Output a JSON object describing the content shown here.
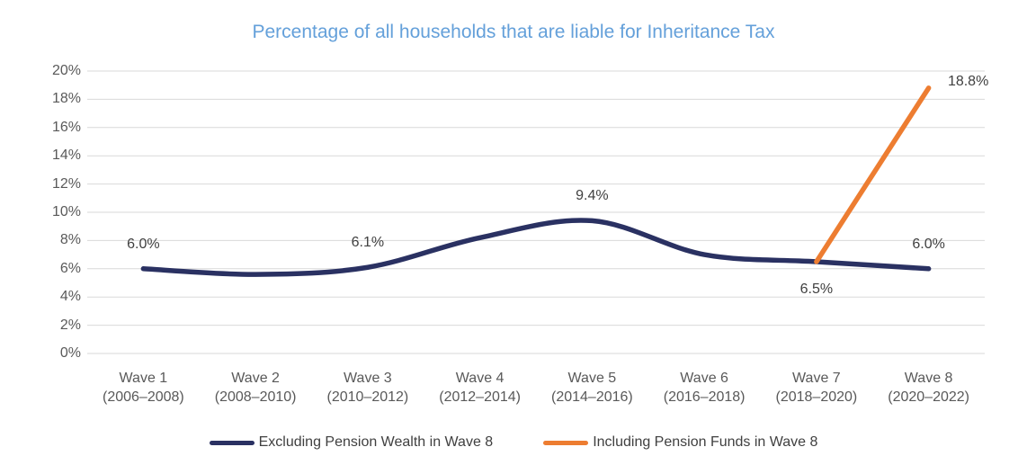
{
  "chart_data": {
    "type": "line",
    "title": "Percentage of all households that are liable for Inheritance Tax",
    "categories": [
      [
        "Wave 1",
        "(2006–2008)"
      ],
      [
        "Wave 2",
        "(2008–2010)"
      ],
      [
        "Wave 3",
        "(2010–2012)"
      ],
      [
        "Wave 4",
        "(2012–2014)"
      ],
      [
        "Wave 5",
        "(2014–2016)"
      ],
      [
        "Wave 6",
        "(2016–2018)"
      ],
      [
        "Wave 7",
        "(2018–2020)"
      ],
      [
        "Wave 8",
        "(2020–2022)"
      ]
    ],
    "ylim": [
      0,
      20
    ],
    "y_step": 2,
    "y_suffix": "%",
    "grid": true,
    "legend_position": "bottom",
    "series": [
      {
        "name": "Excluding Pension Wealth in Wave 8",
        "color": "#2A3162",
        "smooth": true,
        "values": [
          6.0,
          5.6,
          6.1,
          8.2,
          9.4,
          7.0,
          6.5,
          6.0
        ]
      },
      {
        "name": "Including Pension Funds in Wave 8",
        "color": "#ED7D31",
        "smooth": false,
        "values": [
          null,
          null,
          null,
          null,
          null,
          null,
          6.5,
          18.8
        ]
      }
    ],
    "point_labels": [
      {
        "series": 0,
        "index": 0,
        "text": "6.0%",
        "placement": "above"
      },
      {
        "series": 0,
        "index": 2,
        "text": "6.1%",
        "placement": "above"
      },
      {
        "series": 0,
        "index": 4,
        "text": "9.4%",
        "placement": "above"
      },
      {
        "series": 0,
        "index": 6,
        "text": "6.5%",
        "placement": "below"
      },
      {
        "series": 0,
        "index": 7,
        "text": "6.0%",
        "placement": "above"
      },
      {
        "series": 1,
        "index": 7,
        "text": "18.8%",
        "placement": "right"
      }
    ]
  },
  "colors": {
    "title_text": "#64A0DA",
    "axis_text": "#595959",
    "data_label_text": "#404040",
    "legend_text": "#404040",
    "gridline": "#D9D9D9",
    "background": "#FFFFFF"
  }
}
